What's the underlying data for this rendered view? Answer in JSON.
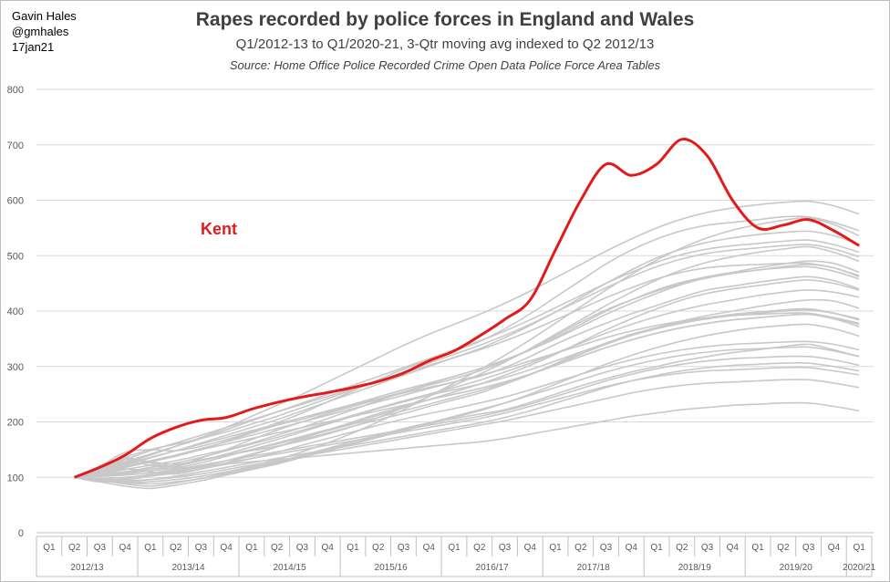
{
  "author": {
    "name": "Gavin Hales",
    "handle": "@gmhales",
    "date": "17jan21"
  },
  "chart_data": {
    "type": "line",
    "title": "Rapes recorded by police forces in England and Wales",
    "subtitle": "Q1/2012-13 to Q1/2020-21, 3-Qtr moving avg indexed to Q2 2012/13",
    "source": "Source: Home Office Police Recorded Crime Open Data Police Force Area Tables",
    "xlabel": "",
    "ylabel": "",
    "ylim": [
      0,
      800
    ],
    "yticks": [
      0,
      100,
      200,
      300,
      400,
      500,
      600,
      700,
      800
    ],
    "grid": "horizontal",
    "legend": "none",
    "x": [
      "Q1",
      "Q2",
      "Q3",
      "Q4",
      "Q1",
      "Q2",
      "Q3",
      "Q4",
      "Q1",
      "Q2",
      "Q3",
      "Q4",
      "Q1",
      "Q2",
      "Q3",
      "Q4",
      "Q1",
      "Q2",
      "Q3",
      "Q4",
      "Q1",
      "Q2",
      "Q3",
      "Q4",
      "Q1",
      "Q2",
      "Q3",
      "Q4",
      "Q1",
      "Q2",
      "Q3",
      "Q4",
      "Q1"
    ],
    "fiscal_years": [
      "2012/13",
      "2013/14",
      "2014/15",
      "2015/16",
      "2016/17",
      "2017/18",
      "2018/19",
      "2019/20",
      "2020/21"
    ],
    "highlight": {
      "name": "Kent",
      "color": "#e31a1c",
      "values": [
        null,
        100,
        118,
        140,
        170,
        190,
        203,
        208,
        223,
        235,
        245,
        253,
        262,
        273,
        288,
        310,
        328,
        355,
        385,
        420,
        510,
        600,
        665,
        645,
        665,
        710,
        680,
        600,
        550,
        555,
        565,
        545,
        518
      ]
    },
    "background_color": "#c8c8c8",
    "background_series": [
      [
        null,
        100,
        108,
        118,
        128,
        138,
        150,
        165,
        180,
        194,
        205,
        218,
        230,
        242,
        254,
        266,
        278,
        292,
        310,
        330,
        352,
        376,
        400,
        420,
        438,
        452,
        462,
        470,
        478,
        485,
        490,
        486,
        470
      ],
      [
        null,
        100,
        92,
        98,
        105,
        112,
        120,
        130,
        142,
        155,
        168,
        180,
        192,
        204,
        215,
        228,
        240,
        252,
        268,
        285,
        305,
        325,
        342,
        358,
        370,
        382,
        392,
        400,
        408,
        415,
        420,
        418,
        405
      ],
      [
        null,
        100,
        118,
        132,
        126,
        120,
        135,
        150,
        168,
        185,
        200,
        215,
        228,
        240,
        252,
        262,
        272,
        282,
        298,
        318,
        340,
        360,
        378,
        395,
        410,
        425,
        438,
        445,
        452,
        458,
        462,
        455,
        440
      ],
      [
        null,
        100,
        95,
        88,
        84,
        90,
        98,
        108,
        118,
        128,
        140,
        152,
        165,
        176,
        188,
        198,
        206,
        214,
        222,
        235,
        250,
        265,
        278,
        290,
        300,
        310,
        318,
        325,
        330,
        336,
        340,
        330,
        318
      ],
      [
        null,
        100,
        110,
        122,
        135,
        148,
        160,
        172,
        184,
        196,
        208,
        220,
        232,
        245,
        258,
        270,
        282,
        296,
        312,
        330,
        355,
        380,
        402,
        420,
        436,
        450,
        460,
        468,
        474,
        480,
        484,
        478,
        462
      ],
      [
        null,
        100,
        98,
        96,
        102,
        108,
        115,
        124,
        134,
        145,
        158,
        170,
        182,
        194,
        205,
        215,
        224,
        234,
        245,
        258,
        272,
        286,
        300,
        312,
        322,
        330,
        336,
        340,
        342,
        344,
        345,
        340,
        330
      ],
      [
        null,
        100,
        104,
        110,
        118,
        126,
        136,
        148,
        160,
        172,
        185,
        198,
        212,
        225,
        238,
        250,
        262,
        275,
        290,
        306,
        324,
        342,
        360,
        376,
        390,
        402,
        412,
        420,
        428,
        434,
        438,
        434,
        425
      ],
      [
        null,
        100,
        115,
        128,
        122,
        118,
        126,
        138,
        150,
        162,
        174,
        186,
        198,
        212,
        226,
        240,
        254,
        268,
        284,
        302,
        322,
        344,
        366,
        386,
        404,
        420,
        432,
        440,
        446,
        452,
        456,
        450,
        438
      ],
      [
        null,
        100,
        120,
        145,
        150,
        148,
        156,
        168,
        182,
        198,
        216,
        236,
        256,
        276,
        295,
        312,
        328,
        345,
        368,
        395,
        425,
        455,
        485,
        510,
        530,
        545,
        555,
        560,
        565,
        570,
        570,
        560,
        545
      ],
      [
        null,
        100,
        106,
        114,
        122,
        130,
        140,
        150,
        162,
        176,
        190,
        206,
        222,
        238,
        254,
        268,
        282,
        296,
        312,
        330,
        350,
        372,
        394,
        414,
        432,
        448,
        460,
        468,
        474,
        478,
        480,
        472,
        458
      ],
      [
        null,
        100,
        94,
        90,
        88,
        92,
        98,
        106,
        116,
        126,
        138,
        150,
        162,
        174,
        186,
        198,
        210,
        222,
        234,
        248,
        262,
        276,
        290,
        302,
        312,
        320,
        326,
        330,
        332,
        334,
        335,
        328,
        318
      ],
      [
        null,
        100,
        112,
        124,
        136,
        148,
        162,
        176,
        190,
        204,
        220,
        236,
        252,
        268,
        284,
        300,
        316,
        332,
        352,
        374,
        398,
        424,
        450,
        474,
        496,
        512,
        524,
        532,
        538,
        542,
        544,
        536,
        520
      ],
      [
        null,
        100,
        102,
        106,
        112,
        120,
        130,
        142,
        155,
        168,
        182,
        196,
        210,
        224,
        236,
        248,
        258,
        268,
        280,
        294,
        310,
        326,
        342,
        356,
        368,
        378,
        386,
        392,
        396,
        400,
        402,
        396,
        386
      ],
      [
        null,
        100,
        108,
        115,
        110,
        106,
        115,
        126,
        140,
        155,
        170,
        185,
        200,
        215,
        228,
        240,
        250,
        260,
        272,
        286,
        302,
        318,
        334,
        348,
        360,
        370,
        378,
        384,
        388,
        392,
        394,
        388,
        378
      ],
      [
        null,
        100,
        96,
        92,
        96,
        102,
        110,
        118,
        126,
        134,
        142,
        150,
        158,
        166,
        174,
        182,
        190,
        198,
        208,
        220,
        234,
        248,
        262,
        274,
        284,
        292,
        298,
        302,
        304,
        306,
        306,
        300,
        292
      ],
      [
        null,
        100,
        118,
        136,
        150,
        160,
        170,
        182,
        196,
        210,
        226,
        242,
        258,
        274,
        290,
        306,
        322,
        338,
        356,
        376,
        398,
        420,
        442,
        462,
        480,
        494,
        504,
        510,
        514,
        518,
        520,
        512,
        498
      ],
      [
        null,
        100,
        105,
        110,
        115,
        122,
        130,
        140,
        150,
        160,
        172,
        184,
        196,
        208,
        220,
        232,
        244,
        256,
        270,
        286,
        304,
        322,
        340,
        356,
        370,
        380,
        388,
        394,
        398,
        402,
        404,
        396,
        384
      ],
      [
        null,
        100,
        92,
        84,
        80,
        86,
        94,
        104,
        114,
        124,
        136,
        148,
        160,
        172,
        184,
        196,
        208,
        220,
        234,
        250,
        268,
        286,
        304,
        320,
        334,
        346,
        356,
        364,
        370,
        374,
        376,
        368,
        355
      ],
      [
        null,
        100,
        112,
        126,
        140,
        156,
        172,
        190,
        210,
        230,
        250,
        272,
        294,
        316,
        338,
        358,
        376,
        394,
        414,
        436,
        460,
        484,
        508,
        530,
        550,
        566,
        578,
        586,
        592,
        596,
        598,
        590,
        575
      ],
      [
        null,
        100,
        108,
        118,
        128,
        140,
        152,
        164,
        176,
        188,
        200,
        212,
        224,
        236,
        248,
        260,
        272,
        284,
        296,
        310,
        324,
        338,
        352,
        364,
        374,
        382,
        388,
        392,
        394,
        396,
        396,
        388,
        376
      ],
      [
        null,
        100,
        98,
        100,
        104,
        110,
        118,
        126,
        134,
        142,
        150,
        158,
        166,
        174,
        182,
        190,
        198,
        206,
        216,
        228,
        240,
        252,
        264,
        274,
        282,
        288,
        292,
        294,
        296,
        298,
        298,
        292,
        285
      ],
      [
        null,
        100,
        114,
        128,
        142,
        156,
        170,
        186,
        202,
        218,
        234,
        250,
        266,
        282,
        298,
        314,
        330,
        346,
        364,
        384,
        406,
        428,
        450,
        470,
        488,
        502,
        512,
        518,
        522,
        526,
        528,
        520,
        506
      ],
      [
        null,
        100,
        102,
        104,
        108,
        114,
        122,
        130,
        138,
        146,
        154,
        162,
        170,
        178,
        186,
        194,
        202,
        210,
        220,
        232,
        246,
        260,
        274,
        286,
        296,
        304,
        310,
        314,
        316,
        318,
        318,
        312,
        302
      ],
      [
        null,
        100,
        110,
        120,
        130,
        140,
        150,
        160,
        170,
        180,
        190,
        200,
        210,
        220,
        230,
        240,
        250,
        260,
        272,
        286,
        302,
        318,
        334,
        348,
        360,
        370,
        378,
        384,
        388,
        392,
        394,
        386,
        372
      ],
      [
        null,
        100,
        96,
        94,
        96,
        100,
        106,
        114,
        122,
        130,
        138,
        146,
        154,
        162,
        170,
        178,
        186,
        194,
        202,
        212,
        222,
        232,
        242,
        252,
        260,
        266,
        270,
        272,
        274,
        276,
        276,
        270,
        262
      ],
      [
        null,
        100,
        116,
        132,
        148,
        162,
        176,
        190,
        204,
        218,
        232,
        246,
        260,
        274,
        288,
        302,
        316,
        330,
        346,
        364,
        384,
        404,
        424,
        442,
        458,
        470,
        478,
        482,
        484,
        486,
        486,
        478,
        464
      ],
      [
        null,
        100,
        104,
        108,
        112,
        116,
        120,
        124,
        128,
        132,
        136,
        140,
        144,
        148,
        152,
        156,
        160,
        164,
        170,
        178,
        186,
        194,
        202,
        210,
        216,
        222,
        226,
        230,
        232,
        234,
        234,
        228,
        220
      ],
      [
        null,
        100,
        118,
        135,
        128,
        124,
        132,
        140,
        148,
        156,
        166,
        178,
        192,
        208,
        226,
        246,
        266,
        286,
        308,
        332,
        358,
        384,
        410,
        434,
        456,
        474,
        488,
        498,
        506,
        512,
        516,
        506,
        490
      ],
      [
        null,
        100,
        94,
        90,
        92,
        96,
        102,
        110,
        120,
        132,
        146,
        162,
        180,
        200,
        222,
        246,
        270,
        294,
        320,
        348,
        378,
        408,
        438,
        466,
        492,
        514,
        532,
        546,
        556,
        564,
        568,
        556,
        536
      ]
    ]
  }
}
